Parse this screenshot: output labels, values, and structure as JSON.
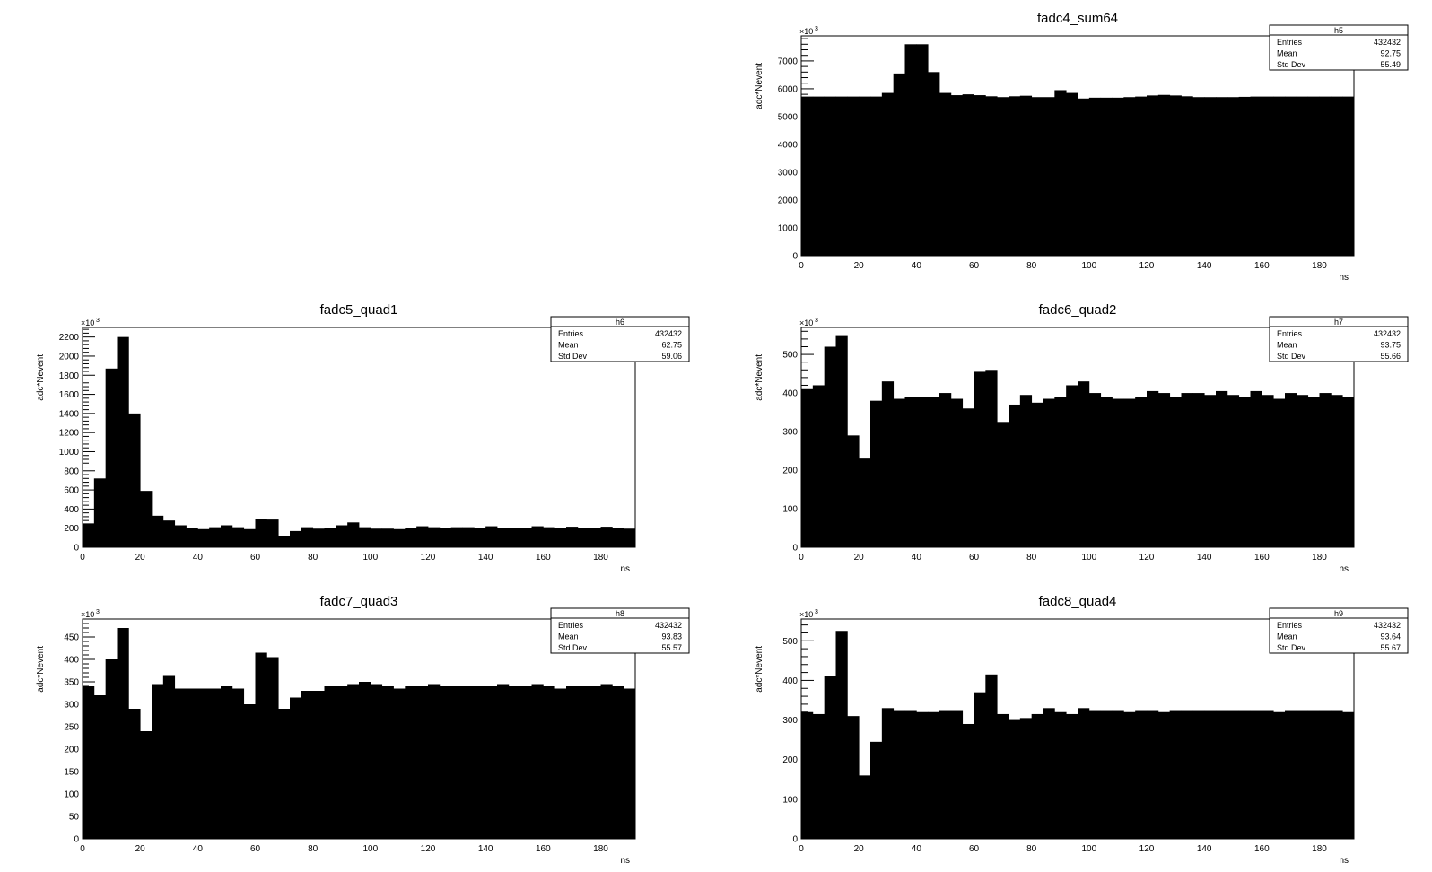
{
  "chart_data": [
    {
      "type": "bar",
      "title": "fadc4_sum64",
      "xlabel": "ns",
      "ylabel": "adc*Nevent",
      "y_multiplier": "×10",
      "y_multiplier_exp": "3",
      "xlim": [
        0,
        192
      ],
      "ylim": [
        0,
        7900
      ],
      "x_ticks": [
        0,
        20,
        40,
        60,
        80,
        100,
        120,
        140,
        160,
        180
      ],
      "y_ticks": [
        0,
        1000,
        2000,
        3000,
        4000,
        5000,
        6000,
        7000
      ],
      "bin_width": 4,
      "values": [
        5720,
        5720,
        5720,
        5720,
        5720,
        5720,
        5720,
        5850,
        6550,
        7600,
        7600,
        6600,
        5850,
        5770,
        5800,
        5770,
        5730,
        5700,
        5730,
        5750,
        5700,
        5700,
        5950,
        5850,
        5650,
        5680,
        5680,
        5680,
        5700,
        5720,
        5760,
        5780,
        5760,
        5730,
        5700,
        5700,
        5700,
        5700,
        5710,
        5720,
        5720,
        5720,
        5720,
        5720,
        5720,
        5720,
        5720,
        5720
      ],
      "stats": {
        "name": "h5",
        "entries_label": "Entries",
        "entries": "432432",
        "mean_label": "Mean",
        "mean": "92.75",
        "std_label": "Std Dev",
        "std": "55.49"
      }
    },
    {
      "type": "bar",
      "title": "fadc5_quad1",
      "xlabel": "ns",
      "ylabel": "adc*Nevent",
      "y_multiplier": "×10",
      "y_multiplier_exp": "3",
      "xlim": [
        0,
        192
      ],
      "ylim": [
        0,
        2300
      ],
      "x_ticks": [
        0,
        20,
        40,
        60,
        80,
        100,
        120,
        140,
        160,
        180
      ],
      "y_ticks": [
        0,
        200,
        400,
        600,
        800,
        1000,
        1200,
        1400,
        1600,
        1800,
        2000,
        2200
      ],
      "bin_width": 4,
      "values": [
        250,
        720,
        1870,
        2200,
        1400,
        590,
        330,
        280,
        230,
        200,
        190,
        210,
        230,
        210,
        190,
        300,
        290,
        120,
        170,
        210,
        195,
        200,
        230,
        260,
        210,
        195,
        195,
        190,
        200,
        220,
        210,
        200,
        210,
        210,
        200,
        220,
        205,
        200,
        200,
        220,
        210,
        200,
        215,
        205,
        200,
        215,
        200,
        195
      ],
      "stats": {
        "name": "h6",
        "entries_label": "Entries",
        "entries": "432432",
        "mean_label": "Mean",
        "mean": "62.75",
        "std_label": "Std Dev",
        "std": "59.06"
      }
    },
    {
      "type": "bar",
      "title": "fadc6_quad2",
      "xlabel": "ns",
      "ylabel": "adc*Nevent",
      "y_multiplier": "×10",
      "y_multiplier_exp": "3",
      "xlim": [
        0,
        192
      ],
      "ylim": [
        0,
        570
      ],
      "x_ticks": [
        0,
        20,
        40,
        60,
        80,
        100,
        120,
        140,
        160,
        180
      ],
      "y_ticks": [
        0,
        100,
        200,
        300,
        400,
        500
      ],
      "bin_width": 4,
      "values": [
        410,
        420,
        520,
        550,
        290,
        230,
        380,
        430,
        385,
        390,
        390,
        390,
        400,
        385,
        360,
        455,
        460,
        325,
        370,
        395,
        375,
        385,
        390,
        420,
        430,
        400,
        390,
        385,
        385,
        390,
        405,
        400,
        390,
        400,
        400,
        395,
        405,
        395,
        390,
        405,
        395,
        385,
        400,
        395,
        390,
        400,
        395,
        390
      ],
      "stats": {
        "name": "h7",
        "entries_label": "Entries",
        "entries": "432432",
        "mean_label": "Mean",
        "mean": "93.75",
        "std_label": "Std Dev",
        "std": "55.66"
      }
    },
    {
      "type": "bar",
      "title": "fadc7_quad3",
      "xlabel": "ns",
      "ylabel": "adc*Nevent",
      "y_multiplier": "×10",
      "y_multiplier_exp": "3",
      "xlim": [
        0,
        192
      ],
      "ylim": [
        0,
        490
      ],
      "x_ticks": [
        0,
        20,
        40,
        60,
        80,
        100,
        120,
        140,
        160,
        180
      ],
      "y_ticks": [
        0,
        50,
        100,
        150,
        200,
        250,
        300,
        350,
        400,
        450
      ],
      "bin_width": 4,
      "values": [
        340,
        320,
        400,
        470,
        290,
        240,
        345,
        365,
        335,
        335,
        335,
        335,
        340,
        335,
        300,
        415,
        405,
        290,
        315,
        330,
        330,
        340,
        340,
        345,
        350,
        345,
        340,
        335,
        340,
        340,
        345,
        340,
        340,
        340,
        340,
        340,
        345,
        340,
        340,
        345,
        340,
        335,
        340,
        340,
        340,
        345,
        340,
        335
      ],
      "stats": {
        "name": "h8",
        "entries_label": "Entries",
        "entries": "432432",
        "mean_label": "Mean",
        "mean": "93.83",
        "std_label": "Std Dev",
        "std": "55.57"
      }
    },
    {
      "type": "bar",
      "title": "fadc8_quad4",
      "xlabel": "ns",
      "ylabel": "adc*Nevent",
      "y_multiplier": "×10",
      "y_multiplier_exp": "3",
      "xlim": [
        0,
        192
      ],
      "ylim": [
        0,
        555
      ],
      "x_ticks": [
        0,
        20,
        40,
        60,
        80,
        100,
        120,
        140,
        160,
        180
      ],
      "y_ticks": [
        0,
        100,
        200,
        300,
        400,
        500
      ],
      "bin_width": 4,
      "values": [
        320,
        315,
        410,
        525,
        310,
        160,
        245,
        330,
        325,
        325,
        320,
        320,
        325,
        325,
        290,
        370,
        415,
        315,
        300,
        305,
        315,
        330,
        320,
        315,
        330,
        325,
        325,
        325,
        320,
        325,
        325,
        320,
        325,
        325,
        325,
        325,
        325,
        325,
        325,
        325,
        325,
        320,
        325,
        325,
        325,
        325,
        325,
        320
      ],
      "stats": {
        "name": "h9",
        "entries_label": "Entries",
        "entries": "432432",
        "mean_label": "Mean",
        "mean": "93.64",
        "std_label": "Std Dev",
        "std": "55.67"
      }
    }
  ]
}
